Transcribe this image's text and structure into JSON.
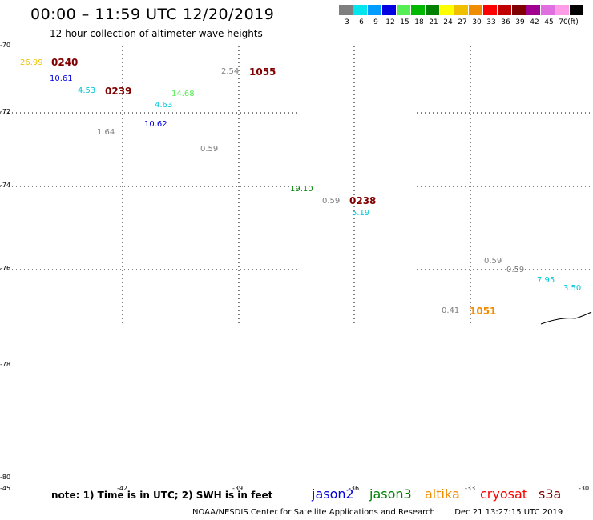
{
  "header": {
    "title": "00:00 – 11:59 UTC 12/20/2019",
    "subtitle": "12 hour collection of altimeter wave heights"
  },
  "legend": {
    "swatches": [
      {
        "color": "#7f7f7f",
        "label": "3"
      },
      {
        "color": "#00e5ee",
        "label": "6"
      },
      {
        "color": "#009cff",
        "label": "9"
      },
      {
        "color": "#0000e0",
        "label": "12"
      },
      {
        "color": "#55ee55",
        "label": "15"
      },
      {
        "color": "#00b800",
        "label": "18"
      },
      {
        "color": "#008000",
        "label": "21"
      },
      {
        "color": "#ffff00",
        "label": "24"
      },
      {
        "color": "#f0c000",
        "label": "27"
      },
      {
        "color": "#f08c00",
        "label": "30"
      },
      {
        "color": "#ff0000",
        "label": "33"
      },
      {
        "color": "#c00000",
        "label": "36"
      },
      {
        "color": "#800000",
        "label": "39"
      },
      {
        "color": "#a00090",
        "label": "42"
      },
      {
        "color": "#e070e0",
        "label": "45"
      },
      {
        "color": "#ff9ce8",
        "label": "70"
      },
      {
        "color": "#000000",
        "label": ""
      }
    ],
    "unit": "(ft)"
  },
  "latitude_labels": [
    "-70",
    "-72",
    "-74",
    "-76",
    "-78",
    "-80"
  ],
  "longitude_labels": [
    "-45",
    "-42",
    "-39",
    "-36",
    "-33",
    "-30"
  ],
  "wave_heights": [
    {
      "value": "26.99",
      "color": "#f0c000"
    },
    {
      "value": "10.61",
      "color": "#0000e0"
    },
    {
      "value": "4.53",
      "color": "#00c8d8"
    },
    {
      "value": "14.68",
      "color": "#55ee55"
    },
    {
      "value": "4.63",
      "color": "#00c8d8"
    },
    {
      "value": "2.54",
      "color": "#7f7f7f"
    },
    {
      "value": "1.64",
      "color": "#7f7f7f"
    },
    {
      "value": "10.62",
      "color": "#0000e0"
    },
    {
      "value": "0.59",
      "color": "#7f7f7f"
    },
    {
      "value": "19.10",
      "color": "#008000"
    },
    {
      "value": "0.59",
      "color": "#7f7f7f"
    },
    {
      "value": "5.19",
      "color": "#00c8d8"
    },
    {
      "value": "0.59",
      "color": "#7f7f7f"
    },
    {
      "value": "0.59",
      "color": "#7f7f7f"
    },
    {
      "value": "7.95",
      "color": "#00c8d8"
    },
    {
      "value": "3.50",
      "color": "#00c8d8"
    },
    {
      "value": "0.41",
      "color": "#7f7f7f"
    }
  ],
  "pass_times": [
    {
      "time": "0240",
      "color": "#800000"
    },
    {
      "time": "0239",
      "color": "#800000"
    },
    {
      "time": "1055",
      "color": "#800000"
    },
    {
      "time": "0238",
      "color": "#800000"
    },
    {
      "time": "1051",
      "color": "#f08c00"
    }
  ],
  "note": "note: 1) Time is in UTC; 2) SWH is in feet",
  "satellites": [
    {
      "name": "jason2",
      "color": "#0000e0"
    },
    {
      "name": "jason3",
      "color": "#008000"
    },
    {
      "name": "altika",
      "color": "#f08c00"
    },
    {
      "name": "cryosat",
      "color": "#ff0000"
    },
    {
      "name": "s3a",
      "color": "#800000"
    }
  ],
  "footer": {
    "credit": "NOAA/NESDIS Center for Satellite Applications and Research",
    "timestamp": "Dec 21 13:27:15 UTC 2019"
  }
}
